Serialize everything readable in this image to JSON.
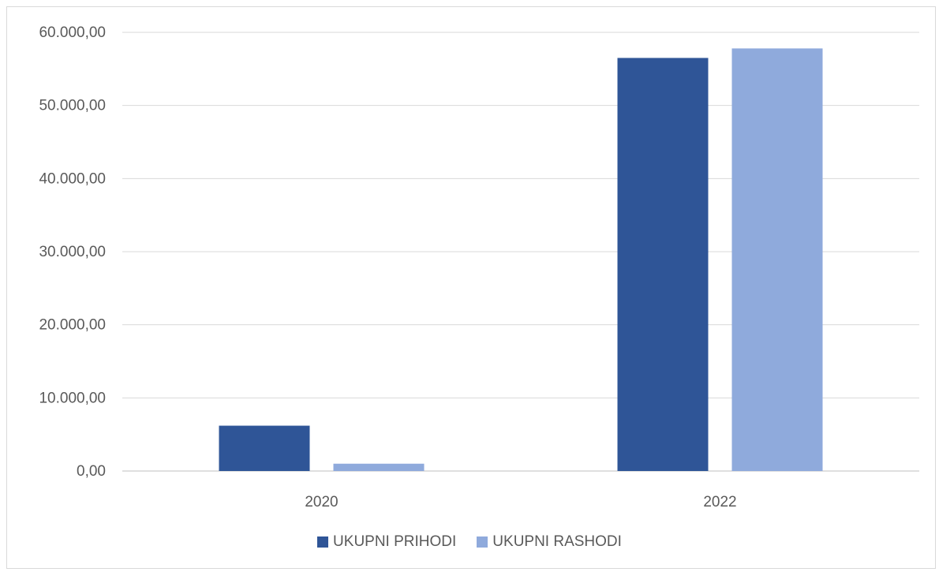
{
  "chart_data": {
    "type": "bar",
    "categories": [
      "2020",
      "2022"
    ],
    "series": [
      {
        "name": "UKUPNI PRIHODI",
        "color": "#2F5597",
        "values": [
          6200,
          56500
        ]
      },
      {
        "name": "UKUPNI RASHODI",
        "color": "#8FAADC",
        "values": [
          1000,
          57800
        ]
      }
    ],
    "ylim": [
      0,
      60000
    ],
    "yticks": [
      "0,00",
      "10.000,00",
      "20.000,00",
      "30.000,00",
      "40.000,00",
      "50.000,00",
      "60.000,00"
    ],
    "ytick_values": [
      0,
      10000,
      20000,
      30000,
      40000,
      50000,
      60000
    ],
    "grid": true,
    "legend_position": "bottom"
  }
}
